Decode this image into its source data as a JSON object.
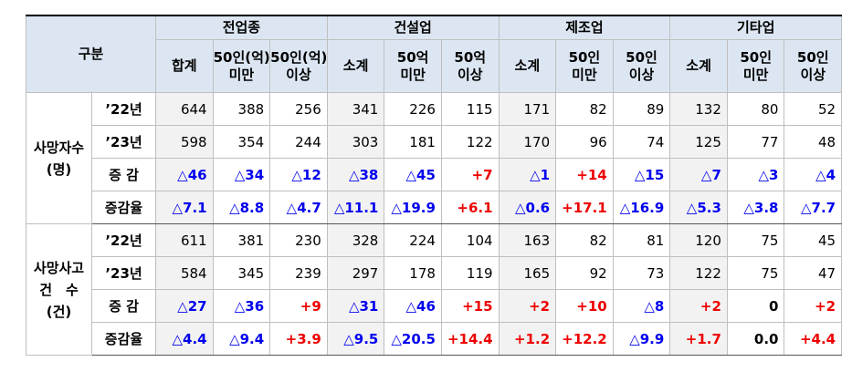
{
  "table": {
    "corner": "구분",
    "groups": [
      "전업종",
      "건설업",
      "제조업",
      "기타업"
    ],
    "subheaders": [
      [
        "합계"
      ],
      [
        "50인(억)",
        "미만"
      ],
      [
        "50인(억)",
        "이상"
      ],
      [
        "소계"
      ],
      [
        "50억",
        "미만"
      ],
      [
        "50억",
        "이상"
      ],
      [
        "소계"
      ],
      [
        "50인",
        "미만"
      ],
      [
        "50인",
        "이상"
      ],
      [
        "소계"
      ],
      [
        "50인",
        "미만"
      ],
      [
        "50인",
        "이상"
      ]
    ],
    "sections": [
      {
        "label": [
          "사망자수",
          "(명)"
        ],
        "rows": [
          {
            "label": "’22년",
            "cells": [
              "644",
              "388",
              "256",
              "341",
              "226",
              "115",
              "171",
              "82",
              "89",
              "132",
              "80",
              "52"
            ]
          },
          {
            "label": "’23년",
            "cells": [
              "598",
              "354",
              "244",
              "303",
              "181",
              "122",
              "170",
              "96",
              "74",
              "125",
              "77",
              "48"
            ]
          },
          {
            "label": "증 감",
            "cells": [
              "△46",
              "△34",
              "△12",
              "△38",
              "△45",
              "+7",
              "△1",
              "+14",
              "△15",
              "△7",
              "△3",
              "△4"
            ]
          },
          {
            "label": "증감율",
            "cells": [
              "△7.1",
              "△8.8",
              "△4.7",
              "△11.1",
              "△19.9",
              "+6.1",
              "△0.6",
              "+17.1",
              "△16.9",
              "△5.3",
              "△3.8",
              "△7.7"
            ]
          }
        ]
      },
      {
        "label": [
          "사망사고",
          "건　수",
          "(건)"
        ],
        "rows": [
          {
            "label": "’22년",
            "cells": [
              "611",
              "381",
              "230",
              "328",
              "224",
              "104",
              "163",
              "82",
              "81",
              "120",
              "75",
              "45"
            ]
          },
          {
            "label": "’23년",
            "cells": [
              "584",
              "345",
              "239",
              "297",
              "178",
              "119",
              "165",
              "92",
              "73",
              "122",
              "75",
              "47"
            ]
          },
          {
            "label": "증 감",
            "cells": [
              "△27",
              "△36",
              "+9",
              "△31",
              "△46",
              "+15",
              "+2",
              "+10",
              "△8",
              "+2",
              "0",
              "+2"
            ]
          },
          {
            "label": "증감율",
            "cells": [
              "△4.4",
              "△9.4",
              "+3.9",
              "△9.5",
              "△20.5",
              "+14.4",
              "+1.2",
              "+12.2",
              "△9.9",
              "+1.7",
              "0.0",
              "+4.4"
            ]
          }
        ]
      }
    ]
  }
}
